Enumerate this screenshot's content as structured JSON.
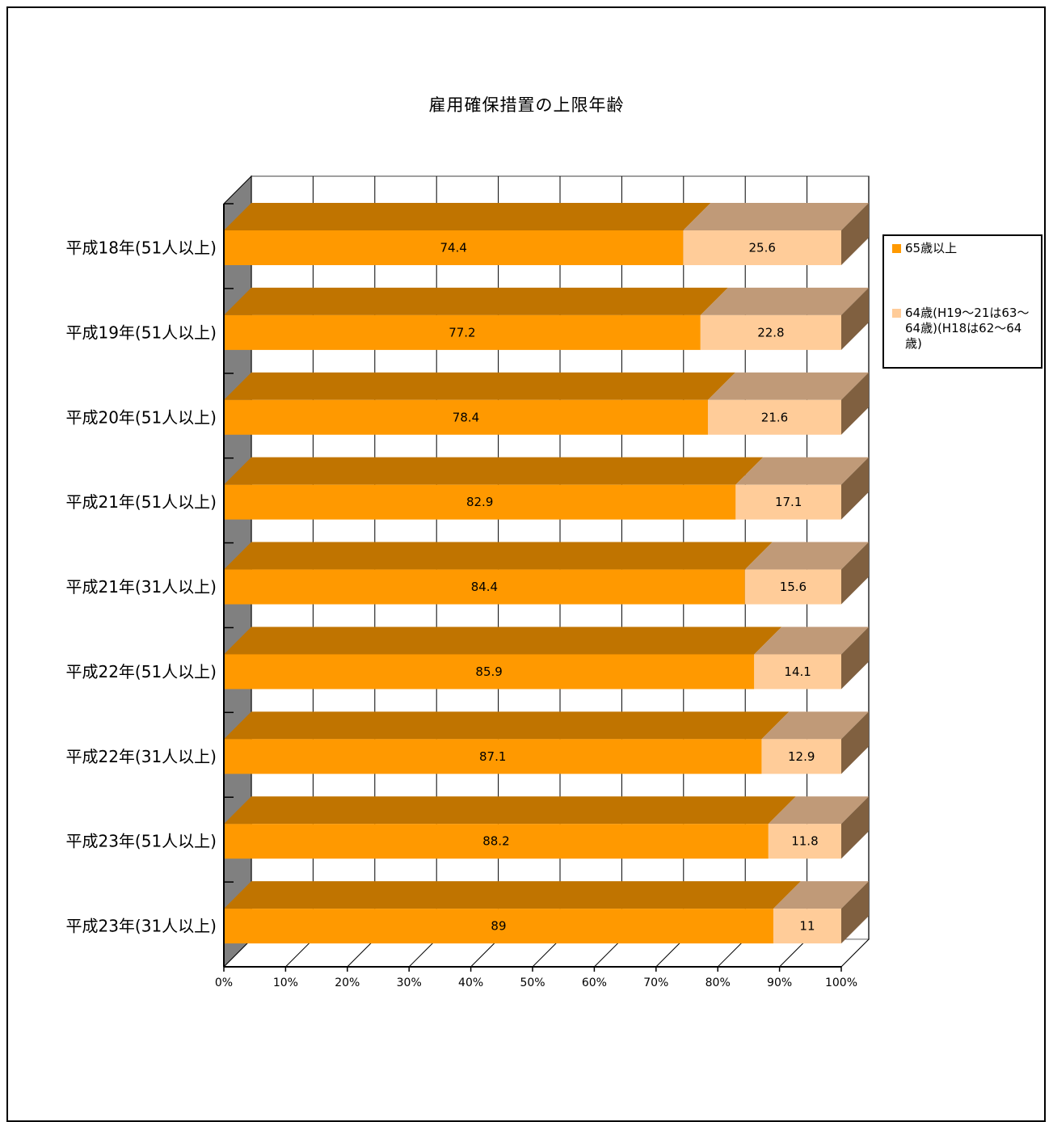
{
  "chart_data": {
    "type": "bar",
    "orientation": "horizontal",
    "stacked": "percent",
    "three_d": true,
    "title": "雇用確保措置の上限年齢",
    "categories": [
      "平成18年(51人以上)",
      "平成19年(51人以上)",
      "平成20年(51人以上)",
      "平成21年(51人以上)",
      "平成21年(31人以上)",
      "平成22年(51人以上)",
      "平成22年(31人以上)",
      "平成23年(51人以上)",
      "平成23年(31人以上)"
    ],
    "series": [
      {
        "name": "65歳以上",
        "color": "#FF9900",
        "values": [
          74.4,
          77.2,
          78.4,
          82.9,
          84.4,
          85.9,
          87.1,
          88.2,
          89
        ],
        "labels": [
          "74.4",
          "77.2",
          "78.4",
          "82.9",
          "84.4",
          "85.9",
          "87.1",
          "88.2",
          "89"
        ]
      },
      {
        "name": "64歳(H19～21は63～64歳)(H18は62～64歳)",
        "color": "#FFCC99",
        "values": [
          25.6,
          22.8,
          21.6,
          17.1,
          15.6,
          14.1,
          12.9,
          11.8,
          11
        ],
        "labels": [
          "25.6",
          "22.8",
          "21.6",
          "17.1",
          "15.6",
          "14.1",
          "12.9",
          "11.8",
          "11"
        ]
      }
    ],
    "x_ticks": [
      "0%",
      "10%",
      "20%",
      "30%",
      "40%",
      "50%",
      "60%",
      "70%",
      "80%",
      "90%",
      "100%"
    ],
    "xlim": [
      0,
      100
    ],
    "grid": true,
    "legend_position": "right"
  },
  "legend": {
    "item1": "65歳以上",
    "item2": "64歳(H19～21は63～64歳)(H18は62～64歳)"
  }
}
